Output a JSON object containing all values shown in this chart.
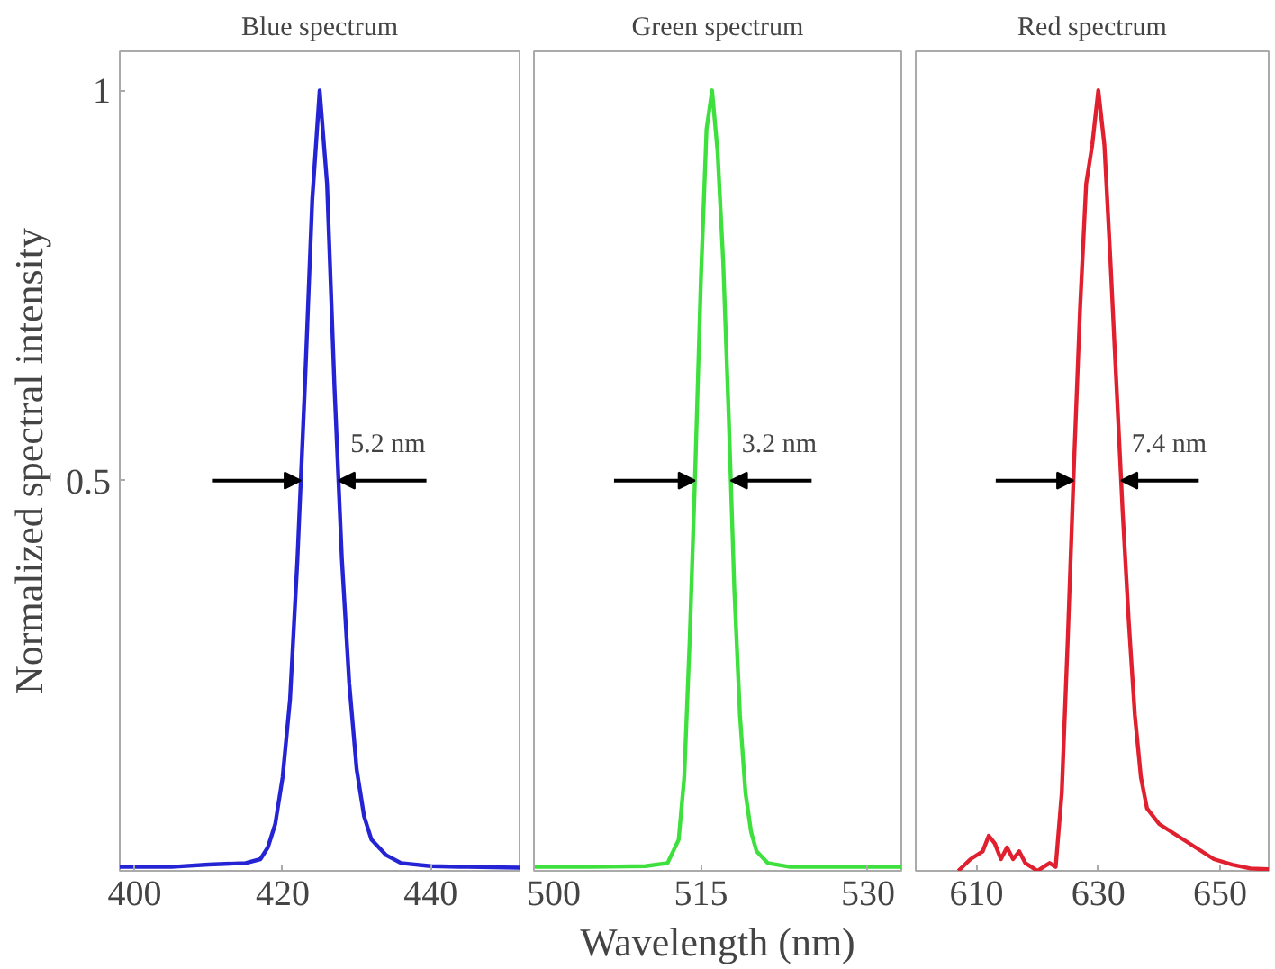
{
  "chart_data": [
    {
      "type": "line",
      "title": "Blue spectrum",
      "ylabel": "Normalized spectral intensity",
      "xlim": [
        398,
        452
      ],
      "xticks": [
        400,
        420,
        440
      ],
      "ylim": [
        0,
        1.05
      ],
      "yticks": [
        0.5,
        1
      ],
      "line_style": "solid",
      "series": [
        {
          "color": "#2424d4",
          "x": [
            398,
            405,
            410,
            415,
            417,
            418,
            419,
            420,
            421,
            422,
            423,
            424,
            425,
            426,
            427,
            428,
            429,
            430,
            431,
            432,
            434,
            436,
            440,
            445,
            452
          ],
          "values": [
            0.005,
            0.005,
            0.008,
            0.01,
            0.015,
            0.03,
            0.06,
            0.12,
            0.22,
            0.4,
            0.62,
            0.86,
            1.0,
            0.88,
            0.62,
            0.4,
            0.24,
            0.13,
            0.07,
            0.04,
            0.02,
            0.01,
            0.006,
            0.005,
            0.004
          ]
        }
      ],
      "annotations": [
        "5.2 nm"
      ]
    },
    {
      "type": "line",
      "title": "Green spectrum",
      "xlabel": "Wavelength (nm)",
      "xlim": [
        500,
        533
      ],
      "xticks": [
        500,
        515,
        530
      ],
      "ylim": [
        0,
        1.05
      ],
      "tick_labels": "x",
      "line_style": "solid",
      "series": [
        {
          "color": "#3ee03e",
          "x": [
            500,
            505,
            510,
            512,
            513,
            513.5,
            514,
            514.5,
            515,
            515.5,
            516,
            516.5,
            517,
            517.5,
            518,
            518.5,
            519,
            519.5,
            520,
            521,
            523,
            527,
            533
          ],
          "values": [
            0.005,
            0.005,
            0.006,
            0.01,
            0.04,
            0.12,
            0.3,
            0.52,
            0.76,
            0.95,
            1.0,
            0.92,
            0.78,
            0.58,
            0.36,
            0.2,
            0.1,
            0.05,
            0.025,
            0.01,
            0.005,
            0.005,
            0.005
          ]
        }
      ],
      "annotations": [
        "3.2 nm"
      ]
    },
    {
      "type": "line",
      "title": "Red spectrum",
      "xlim": [
        600,
        658
      ],
      "xticks": [
        610,
        630,
        650
      ],
      "ylim": [
        0,
        1.05
      ],
      "tick_labels": "x",
      "line_style": "solid",
      "series": [
        {
          "color": "#e0202e",
          "x": [
            607,
            609,
            611,
            612,
            613,
            614,
            615,
            616,
            617,
            618,
            619,
            620,
            621,
            622,
            623,
            624,
            625,
            626,
            627,
            628,
            629,
            630,
            631,
            632,
            633,
            634,
            635,
            636,
            637,
            638,
            640,
            643,
            646,
            649,
            652,
            655,
            658
          ],
          "values": [
            0.0,
            0.015,
            0.025,
            0.045,
            0.035,
            0.015,
            0.03,
            0.015,
            0.025,
            0.01,
            0.005,
            0.0,
            0.005,
            0.01,
            0.005,
            0.1,
            0.3,
            0.52,
            0.72,
            0.88,
            0.93,
            1.0,
            0.93,
            0.78,
            0.62,
            0.46,
            0.32,
            0.2,
            0.12,
            0.08,
            0.06,
            0.045,
            0.03,
            0.015,
            0.008,
            0.003,
            0.002
          ]
        }
      ],
      "annotations": [
        "7.4 nm"
      ]
    }
  ]
}
